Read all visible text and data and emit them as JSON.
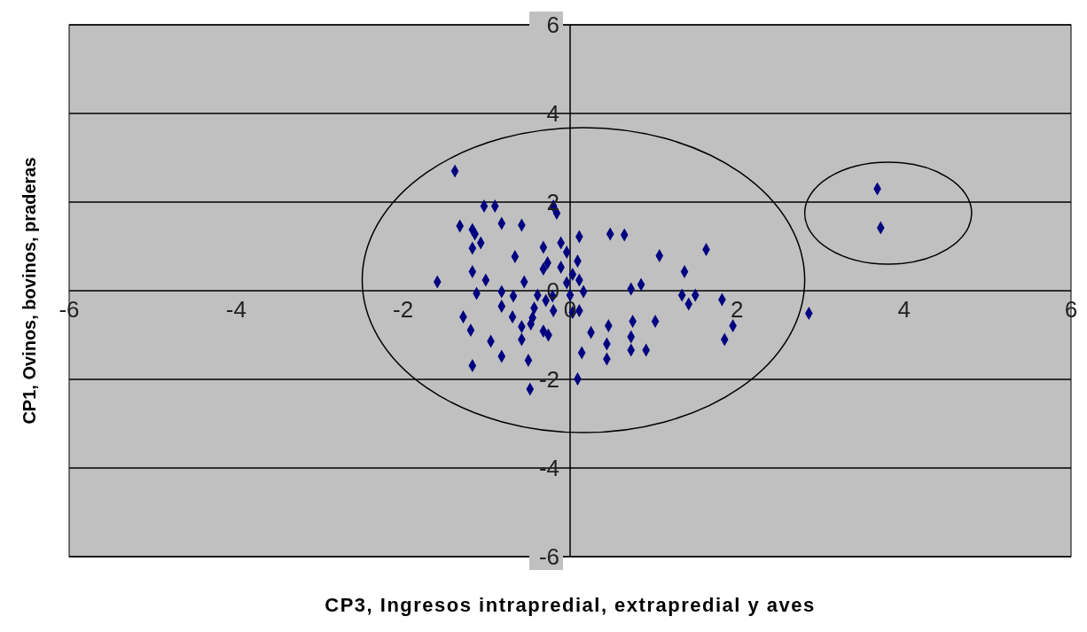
{
  "chart_data": {
    "type": "scatter",
    "xlabel": "CP3, Ingresos intrapredial, extrapredial y aves",
    "ylabel": "CP1, Ovinos, bovinos, praderas",
    "xlim": [
      -6,
      6
    ],
    "ylim": [
      -6,
      6
    ],
    "xticks": [
      -6,
      -4,
      -2,
      0,
      2,
      4,
      6
    ],
    "yticks": [
      -6,
      -4,
      -2,
      0,
      2,
      4,
      6
    ],
    "grid": "y",
    "legend": false,
    "marker": "diamond",
    "series": [
      {
        "color": "#000080",
        "x": [
          -1.38,
          -1.03,
          -0.9,
          -0.2,
          -0.16,
          -0.82,
          -0.58,
          -1.32,
          -1.17,
          -1.14,
          -1.07,
          -1.17,
          0.11,
          -0.32,
          -0.11,
          -0.66,
          -0.04,
          -0.27,
          -0.32,
          -0.11,
          0.09,
          -1.17,
          -1.59,
          -1.01,
          0.03,
          -0.04,
          0.11,
          -0.55,
          -0.82,
          -1.12,
          -0.68,
          -0.39,
          -0.21,
          0.0,
          0.16,
          -0.29,
          -0.82,
          -0.43,
          -0.2,
          0.03,
          0.11,
          -1.28,
          -0.69,
          -0.45,
          -0.58,
          -0.47,
          -1.19,
          -0.32,
          -0.26,
          -0.95,
          -0.58,
          0.14,
          -0.82,
          -0.5,
          -1.17,
          0.09,
          -0.48,
          0.48,
          0.65,
          1.63,
          1.07,
          1.37,
          0.85,
          0.73,
          1.34,
          1.5,
          1.82,
          1.42,
          0.75,
          1.02,
          0.46,
          0.25,
          1.95,
          0.73,
          0.44,
          1.85,
          0.73,
          0.91,
          0.44,
          3.68,
          3.72,
          2.86
        ],
        "values": [
          2.7,
          1.91,
          1.91,
          1.91,
          1.75,
          1.52,
          1.48,
          1.46,
          1.38,
          1.28,
          1.08,
          0.96,
          1.22,
          0.98,
          1.08,
          0.77,
          0.87,
          0.63,
          0.49,
          0.53,
          0.67,
          0.43,
          0.2,
          0.24,
          0.37,
          0.18,
          0.24,
          0.2,
          -0.02,
          -0.06,
          -0.12,
          -0.1,
          -0.12,
          -0.1,
          -0.02,
          -0.22,
          -0.35,
          -0.39,
          -0.45,
          -0.49,
          -0.45,
          -0.59,
          -0.59,
          -0.61,
          -0.81,
          -0.75,
          -0.89,
          -0.91,
          -1.0,
          -1.14,
          -1.1,
          -1.4,
          -1.48,
          -1.57,
          -1.69,
          -1.99,
          -2.22,
          1.28,
          1.26,
          0.93,
          0.79,
          0.43,
          0.14,
          0.04,
          -0.1,
          -0.1,
          -0.2,
          -0.3,
          -0.69,
          -0.69,
          -0.79,
          -0.94,
          -0.79,
          -1.04,
          -1.2,
          -1.1,
          -1.34,
          -1.34,
          -1.54,
          2.3,
          1.42,
          -0.51
        ]
      }
    ]
  }
}
